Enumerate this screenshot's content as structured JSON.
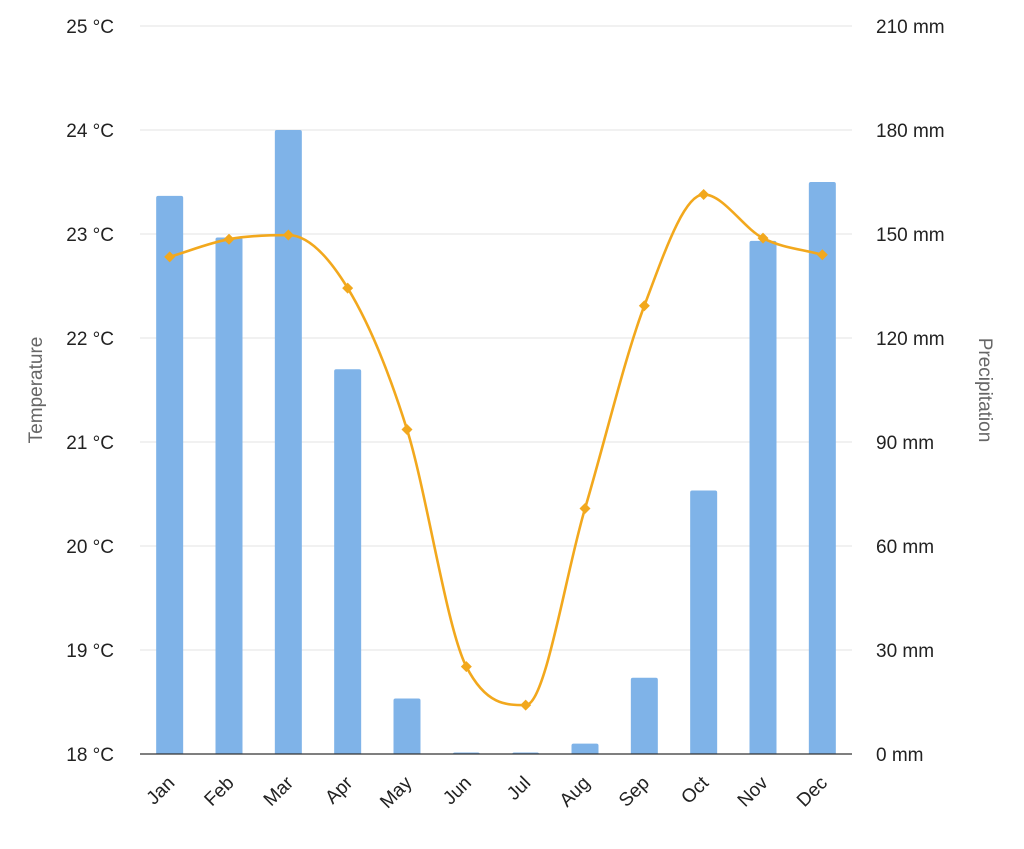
{
  "chart_data": {
    "type": "bar",
    "categories": [
      "Jan",
      "Feb",
      "Mar",
      "Apr",
      "May",
      "Jun",
      "Jul",
      "Aug",
      "Sep",
      "Oct",
      "Nov",
      "Dec"
    ],
    "series": [
      {
        "type": "bar",
        "axis": "right",
        "values": [
          161,
          149,
          180,
          111,
          16,
          0,
          0,
          3,
          22,
          76,
          148,
          165
        ]
      },
      {
        "type": "line",
        "axis": "left",
        "smooth": true,
        "marker": "diamond",
        "values": [
          22.78,
          22.95,
          22.99,
          22.48,
          21.12,
          18.84,
          18.47,
          20.36,
          22.31,
          23.38,
          22.96,
          22.8
        ]
      }
    ],
    "y_left": {
      "label": "Temperature",
      "min": 18,
      "max": 25,
      "ticks": [
        "18 °C",
        "19 °C",
        "20 °C",
        "21 °C",
        "22 °C",
        "23 °C",
        "24 °C",
        "25 °C"
      ]
    },
    "y_right": {
      "label": "Precipitation",
      "min": 0,
      "max": 210,
      "ticks": [
        "0 mm",
        "30 mm",
        "60 mm",
        "90 mm",
        "120 mm",
        "150 mm",
        "180 mm",
        "210 mm"
      ]
    },
    "title": "",
    "legend": "none",
    "grid": true,
    "colors": {
      "bar": "#7fb3e8",
      "line": "#f2a81d",
      "grid": "#e3e3e3",
      "baseline": "#333333",
      "tick_text": "#222222",
      "axis_title": "#666666"
    }
  }
}
